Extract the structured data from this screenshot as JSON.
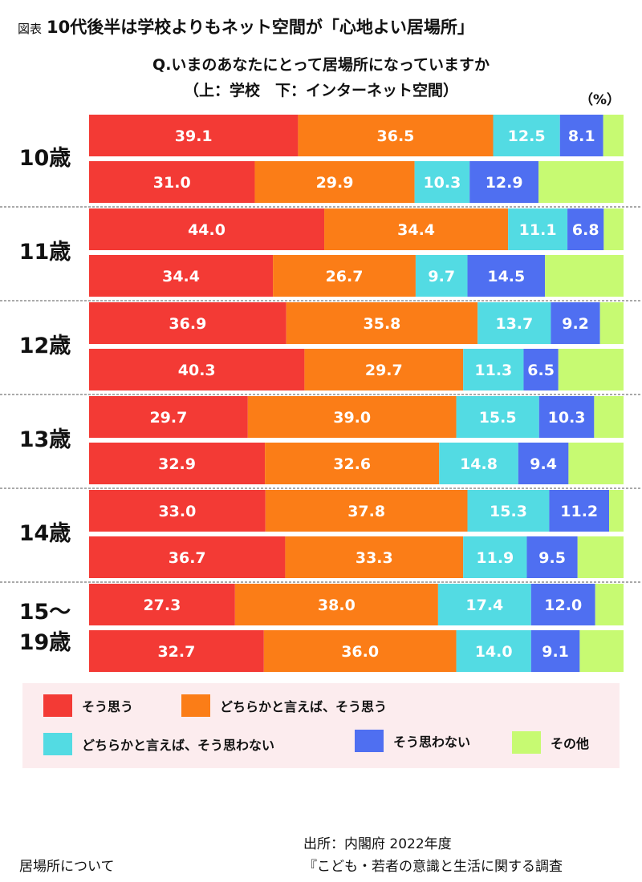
{
  "header": {
    "tag": "図表",
    "title": "10代後半は学校よりもネット空間が「心地よい居場所」",
    "question_line1": "Q.いまのあなたにとって居場所になっていますか",
    "question_line2": "（上：学校　下：インターネット空間）",
    "unit": "（%）"
  },
  "colors": {
    "そう思う": "#f33a35",
    "どちらかと言えば、そう思う": "#fb7d17",
    "どちらかと言えば、そう思わない": "#53dbe3",
    "そう思わない": "#4f6ff1",
    "その他": "#c7fa72"
  },
  "chart_data": {
    "type": "bar",
    "orientation": "horizontal",
    "stacked": true,
    "percent_stacked": true,
    "categories": [
      "10歳",
      "11歳",
      "12歳",
      "13歳",
      "14歳",
      "15〜19歳"
    ],
    "category_labels": [
      [
        "10歳"
      ],
      [
        "11歳"
      ],
      [
        "12歳"
      ],
      [
        "13歳"
      ],
      [
        "14歳"
      ],
      [
        "15〜",
        "19歳"
      ]
    ],
    "sub_rows": [
      "上：学校",
      "下：インターネット空間"
    ],
    "series": [
      {
        "name": "そう思う",
        "school": [
          39.1,
          44.0,
          36.9,
          29.7,
          33.0,
          27.3
        ],
        "internet": [
          31.0,
          34.4,
          40.3,
          32.9,
          36.7,
          32.7
        ]
      },
      {
        "name": "どちらかと言えば、そう思う",
        "school": [
          36.5,
          34.4,
          35.8,
          39.0,
          37.8,
          38.0
        ],
        "internet": [
          29.9,
          26.7,
          29.7,
          32.6,
          33.3,
          36.0
        ]
      },
      {
        "name": "どちらかと言えば、そう思わない",
        "school": [
          12.5,
          11.1,
          13.7,
          15.5,
          15.3,
          17.4
        ],
        "internet": [
          10.3,
          9.7,
          11.3,
          14.8,
          11.9,
          14.0
        ]
      },
      {
        "name": "そう思わない",
        "school": [
          8.1,
          6.8,
          9.2,
          10.3,
          11.2,
          12.0
        ],
        "internet": [
          12.9,
          14.5,
          6.5,
          9.4,
          9.5,
          9.1
        ]
      },
      {
        "name": "その他",
        "school": [
          3.8,
          3.7,
          4.4,
          5.5,
          2.7,
          5.3
        ],
        "internet": [
          15.9,
          14.7,
          12.2,
          10.3,
          8.6,
          8.2
        ]
      }
    ],
    "data_labels_series": [
      "そう思う",
      "どちらかと言えば、そう思う",
      "どちらかと言えば、そう思わない",
      "そう思わない"
    ],
    "xlim": [
      0,
      100
    ],
    "legend": [
      "そう思う",
      "どちらかと言えば、そう思う",
      "どちらかと言えば、そう思わない",
      "そう思わない",
      "その他"
    ],
    "legend_position": "bottom"
  },
  "footer": {
    "source_line1": "出所：内閣府 2022年度",
    "source_line2": "『こども・若者の意識と生活に関する調査",
    "note": "居場所について"
  }
}
